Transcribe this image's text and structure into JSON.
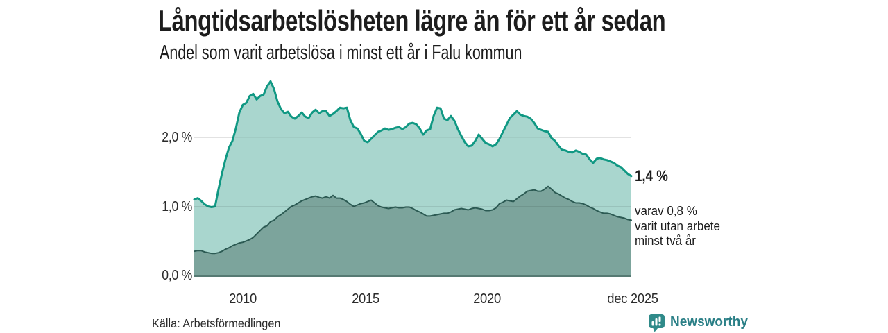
{
  "header": {
    "title": "Långtidsarbetslösheten lägre än för ett år sedan",
    "subtitle": "Andel som varit arbetslösa i minst ett år i Falu kommun"
  },
  "chart": {
    "y_ticks": [
      "2,0 %",
      "1,0 %",
      "0,0 %"
    ],
    "x_ticks": [
      "2010",
      "2015",
      "2020",
      "dec 2025"
    ],
    "end_label_total": "1,4 %",
    "end_label_sub_line1": "varav 0,8 %",
    "end_label_sub_line2": "varit utan arbete",
    "end_label_sub_line3": "minst två år"
  },
  "footer": {
    "source": "Källa: Arbetsförmedlingen",
    "brand": "Newsworthy"
  },
  "colors": {
    "gridline": "#d8d8d8",
    "gridline_overlay": "rgba(0,0,0,0.09)",
    "baseline": "#567a73",
    "brand_text": "#2a7f86",
    "brand_icon": "#2f8a89",
    "title_text": "#1d1d1d"
  },
  "chart_data": {
    "type": "area",
    "title": "Långtidsarbetslösheten lägre än för ett år sedan",
    "subtitle": "Andel som varit arbetslösa i minst ett år i Falu kommun",
    "unit": "%",
    "x_range": [
      2008.0,
      2025.92
    ],
    "x_tick_values": [
      2010,
      2015,
      2020,
      2025.92
    ],
    "ylim": [
      0,
      2.95
    ],
    "y_gridlines": [
      1.0,
      2.0
    ],
    "legend_position": "none",
    "grid": true,
    "series": [
      {
        "name": "Arbetslösa minst ett år (totalt)",
        "end_value_label": "1,4 %",
        "end_value": 1.4,
        "line_color": "#109883",
        "fill_color": "#a9d6ce",
        "values": [
          1.1,
          1.12,
          1.08,
          1.03,
          1.0,
          0.99,
          1.0,
          1.25,
          1.48,
          1.68,
          1.85,
          1.95,
          2.13,
          2.36,
          2.47,
          2.5,
          2.6,
          2.63,
          2.55,
          2.6,
          2.62,
          2.74,
          2.81,
          2.7,
          2.52,
          2.41,
          2.35,
          2.37,
          2.3,
          2.27,
          2.31,
          2.36,
          2.3,
          2.28,
          2.36,
          2.4,
          2.35,
          2.38,
          2.38,
          2.31,
          2.34,
          2.38,
          2.43,
          2.42,
          2.43,
          2.25,
          2.15,
          2.13,
          2.05,
          1.95,
          1.93,
          1.98,
          2.03,
          2.08,
          2.1,
          2.13,
          2.11,
          2.12,
          2.14,
          2.15,
          2.12,
          2.15,
          2.2,
          2.21,
          2.19,
          2.13,
          2.04,
          2.1,
          2.12,
          2.31,
          2.43,
          2.42,
          2.27,
          2.25,
          2.31,
          2.24,
          2.12,
          2.02,
          1.93,
          1.87,
          1.88,
          1.95,
          2.04,
          1.98,
          1.92,
          1.9,
          1.87,
          1.9,
          1.98,
          2.08,
          2.18,
          2.28,
          2.33,
          2.38,
          2.33,
          2.31,
          2.3,
          2.27,
          2.21,
          2.13,
          2.11,
          2.09,
          2.08,
          1.99,
          1.95,
          1.88,
          1.82,
          1.81,
          1.79,
          1.78,
          1.81,
          1.79,
          1.76,
          1.75,
          1.68,
          1.63,
          1.69,
          1.7,
          1.68,
          1.67,
          1.65,
          1.63,
          1.59,
          1.57,
          1.52,
          1.47,
          1.44
        ]
      },
      {
        "name": "varav utan arbete minst två år",
        "end_value_label": "varav 0,8 %",
        "end_value": 0.8,
        "line_color": "#2c5a53",
        "fill_color": "#7ca49c",
        "values": [
          0.35,
          0.36,
          0.36,
          0.34,
          0.33,
          0.32,
          0.32,
          0.33,
          0.35,
          0.38,
          0.4,
          0.43,
          0.45,
          0.47,
          0.48,
          0.5,
          0.52,
          0.55,
          0.6,
          0.65,
          0.7,
          0.72,
          0.78,
          0.8,
          0.85,
          0.88,
          0.92,
          0.96,
          1.0,
          1.02,
          1.05,
          1.08,
          1.1,
          1.12,
          1.14,
          1.15,
          1.13,
          1.12,
          1.14,
          1.12,
          1.16,
          1.12,
          1.12,
          1.1,
          1.07,
          1.03,
          1.0,
          1.02,
          1.04,
          1.05,
          1.07,
          1.09,
          1.05,
          1.01,
          0.99,
          0.98,
          0.97,
          0.98,
          0.99,
          0.98,
          0.98,
          0.99,
          0.99,
          0.97,
          0.94,
          0.92,
          0.89,
          0.86,
          0.86,
          0.87,
          0.88,
          0.89,
          0.9,
          0.9,
          0.92,
          0.95,
          0.96,
          0.97,
          0.96,
          0.95,
          0.97,
          0.98,
          0.97,
          0.96,
          0.94,
          0.94,
          0.95,
          0.98,
          1.04,
          1.06,
          1.09,
          1.08,
          1.07,
          1.11,
          1.15,
          1.18,
          1.22,
          1.23,
          1.24,
          1.22,
          1.22,
          1.25,
          1.29,
          1.25,
          1.2,
          1.18,
          1.15,
          1.12,
          1.1,
          1.07,
          1.05,
          1.05,
          1.04,
          1.02,
          0.99,
          0.97,
          0.94,
          0.92,
          0.9,
          0.9,
          0.89,
          0.87,
          0.85,
          0.84,
          0.83,
          0.81,
          0.8
        ]
      }
    ]
  }
}
